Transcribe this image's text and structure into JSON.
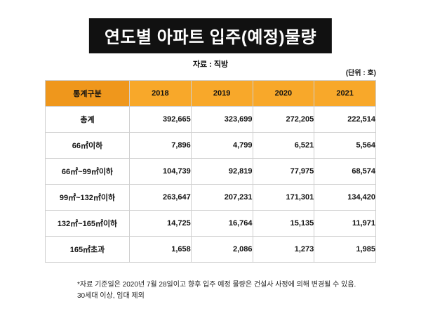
{
  "page": {
    "title": "연도별 아파트 입주(예정)물량",
    "source_label": "자료 : 직방",
    "unit_label": "(단위 : 호)",
    "footnote_line1": "*자료 기준일은 2020년 7월 28일이고 향후 입주 예정 물량은 건설사 사정에 의해 변경될 수 있음.",
    "footnote_line2": "30세대 이상, 임대 제외"
  },
  "colors": {
    "header_label_bg": "#ef971c",
    "header_year_bg": "#f8a82a",
    "banner_bg": "#111111",
    "border": "#cfcfcf"
  },
  "chart_data": {
    "type": "table",
    "title": "연도별 아파트 입주(예정)물량",
    "source": "직방",
    "unit": "호",
    "columns": [
      "통계구분",
      "2018",
      "2019",
      "2020",
      "2021"
    ],
    "rows": [
      {
        "label": "총계",
        "values": [
          "392,665",
          "323,699",
          "272,205",
          "222,514"
        ]
      },
      {
        "label": "66㎡이하",
        "values": [
          "7,896",
          "4,799",
          "6,521",
          "5,564"
        ]
      },
      {
        "label": "66㎡~99㎡이하",
        "values": [
          "104,739",
          "92,819",
          "77,975",
          "68,574"
        ]
      },
      {
        "label": "99㎡~132㎡이하",
        "values": [
          "263,647",
          "207,231",
          "171,301",
          "134,420"
        ]
      },
      {
        "label": "132㎡~165㎡이하",
        "values": [
          "14,725",
          "16,764",
          "15,135",
          "11,971"
        ]
      },
      {
        "label": "165㎡초과",
        "values": [
          "1,658",
          "2,086",
          "1,273",
          "1,985"
        ]
      }
    ]
  }
}
